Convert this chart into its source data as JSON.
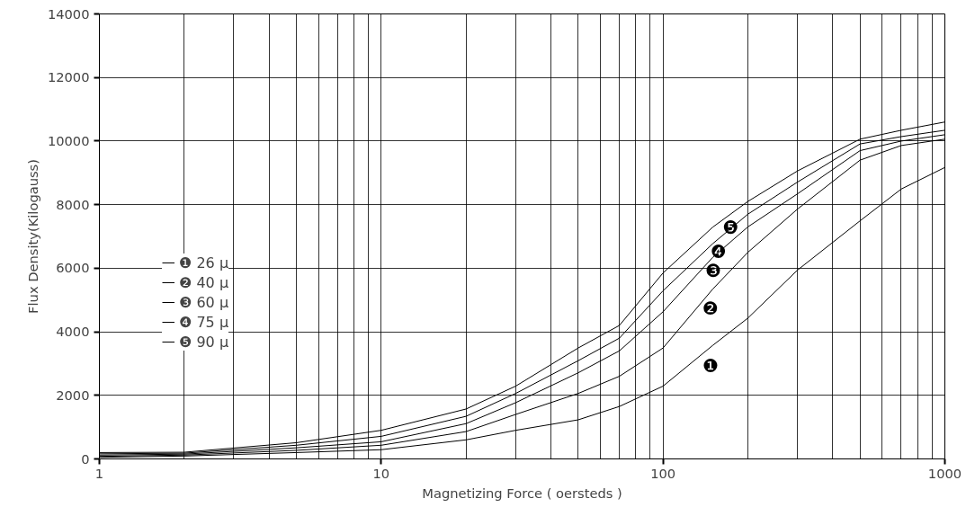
{
  "chart_data": {
    "type": "line",
    "xlabel": "Magnetizing Force ( oersteds )",
    "ylabel": "Flux Density(Kilogauss)",
    "x": [
      1,
      2,
      5,
      10,
      20,
      30,
      50,
      70,
      100,
      150,
      200,
      300,
      500,
      700,
      1000
    ],
    "series": [
      {
        "name": "❶ 26 μ",
        "color": "#000000",
        "values": [
          50,
          90,
          200,
          290,
          600,
          900,
          1230,
          1650,
          2290,
          3570,
          4430,
          5940,
          7490,
          8490,
          9170
        ]
      },
      {
        "name": "❷ 40 μ",
        "color": "#000000",
        "values": [
          80,
          120,
          270,
          430,
          860,
          1400,
          2060,
          2600,
          3490,
          5340,
          6500,
          7860,
          9400,
          9860,
          10060
        ]
      },
      {
        "name": "❸ 60 μ",
        "color": "#000000",
        "values": [
          120,
          150,
          350,
          540,
          1110,
          1770,
          2710,
          3400,
          4630,
          6340,
          7300,
          8340,
          9700,
          10000,
          10200
        ]
      },
      {
        "name": "❹ 75 μ",
        "color": "#000000",
        "values": [
          160,
          180,
          430,
          710,
          1340,
          2060,
          3090,
          3800,
          5290,
          6770,
          7700,
          8710,
          9910,
          10140,
          10340
        ]
      },
      {
        "name": "❺ 90 μ",
        "color": "#000000",
        "values": [
          200,
          210,
          510,
          900,
          1570,
          2290,
          3490,
          4200,
          5850,
          7290,
          8100,
          9060,
          10060,
          10340,
          10600
        ]
      }
    ],
    "annotations": [
      {
        "text": "❶",
        "x": 134,
        "y": 3100
      },
      {
        "text": "❷",
        "x": 134,
        "y": 4900
      },
      {
        "text": "❸",
        "x": 137,
        "y": 6100
      },
      {
        "text": "❹",
        "x": 143,
        "y": 6700
      },
      {
        "text": "❺",
        "x": 158,
        "y": 7450
      }
    ],
    "log": "x",
    "xlim": [
      1,
      1000
    ],
    "xticks": [
      1,
      10,
      100,
      1000
    ],
    "ylim": [
      0,
      14000
    ],
    "yticks": [
      0,
      2000,
      4000,
      6000,
      8000,
      10000,
      12000,
      14000
    ],
    "grid": true,
    "legend": "left",
    "line_style": "solid",
    "marker": "none"
  }
}
